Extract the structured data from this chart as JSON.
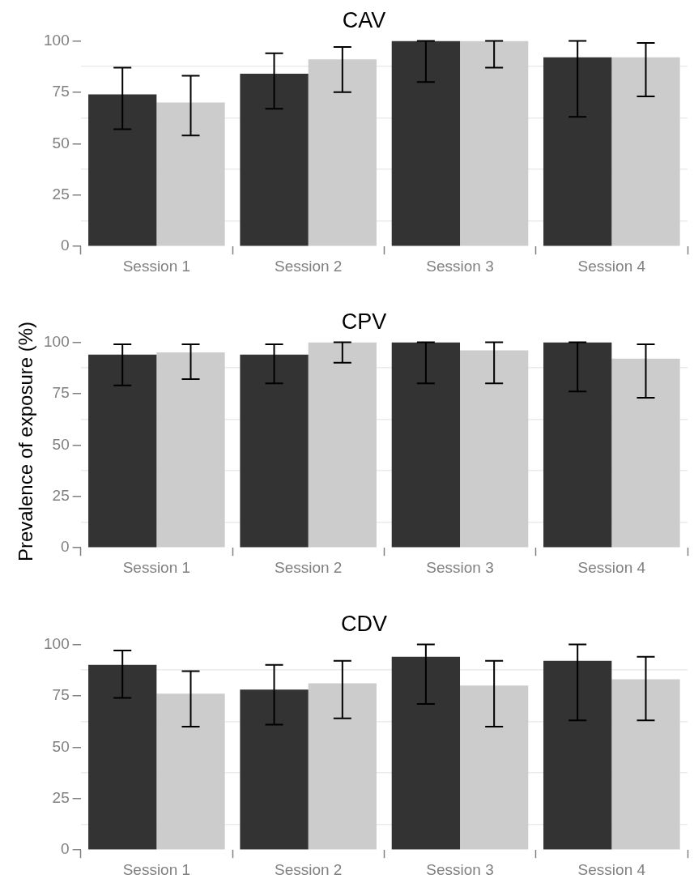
{
  "chart_data": [
    {
      "type": "bar",
      "title": "CAV",
      "categories": [
        "Session 1",
        "Session 2",
        "Session 3",
        "Session 4"
      ],
      "series": [
        {
          "color": "#333333",
          "values": [
            74,
            84,
            100,
            92
          ],
          "errors": [
            [
              57,
              87
            ],
            [
              67,
              94
            ],
            [
              80,
              100
            ],
            [
              63,
              100
            ]
          ]
        },
        {
          "color": "#cccccc",
          "values": [
            70,
            91,
            100,
            92
          ],
          "errors": [
            [
              54,
              83
            ],
            [
              75,
              97
            ],
            [
              87,
              100
            ],
            [
              73,
              99
            ]
          ]
        }
      ],
      "ylim": [
        0,
        100
      ],
      "yticks": [
        0,
        {
          "value": 12.5,
          "label": null
        },
        25,
        {
          "value": 37.5,
          "label": null
        },
        50,
        {
          "value": 62.5,
          "label": null
        },
        75,
        {
          "value": 87.5,
          "label": null
        },
        100
      ],
      "grid": "y",
      "legend": false
    },
    {
      "type": "bar",
      "title": "CPV",
      "ylabel": "Prevalence of exposure (%)",
      "categories": [
        "Session 1",
        "Session 2",
        "Session 3",
        "Session 4"
      ],
      "series": [
        {
          "color": "#333333",
          "values": [
            94,
            94,
            100,
            100
          ],
          "errors": [
            [
              79,
              99
            ],
            [
              80,
              99
            ],
            [
              80,
              100
            ],
            [
              76,
              100
            ]
          ]
        },
        {
          "color": "#cccccc",
          "values": [
            95,
            100,
            96,
            92
          ],
          "errors": [
            [
              82,
              99
            ],
            [
              90,
              100
            ],
            [
              80,
              100
            ],
            [
              73,
              99
            ]
          ]
        }
      ],
      "ylim": [
        0,
        100
      ],
      "yticks": [
        0,
        {
          "value": 12.5,
          "label": null
        },
        25,
        {
          "value": 37.5,
          "label": null
        },
        50,
        {
          "value": 62.5,
          "label": null
        },
        75,
        {
          "value": 87.5,
          "label": null
        },
        100
      ],
      "grid": "y",
      "legend": false
    },
    {
      "type": "bar",
      "title": "CDV",
      "categories": [
        "Session 1",
        "Session 2",
        "Session 3",
        "Session 4"
      ],
      "series": [
        {
          "color": "#333333",
          "values": [
            90,
            78,
            94,
            92
          ],
          "errors": [
            [
              74,
              97
            ],
            [
              61,
              90
            ],
            [
              71,
              100
            ],
            [
              63,
              100
            ]
          ]
        },
        {
          "color": "#cccccc",
          "values": [
            76,
            81,
            80,
            83
          ],
          "errors": [
            [
              60,
              87
            ],
            [
              64,
              92
            ],
            [
              60,
              92
            ],
            [
              63,
              94
            ]
          ]
        }
      ],
      "ylim": [
        0,
        100
      ],
      "yticks": [
        0,
        {
          "value": 12.5,
          "label": null
        },
        25,
        {
          "value": 37.5,
          "label": null
        },
        50,
        {
          "value": 62.5,
          "label": null
        },
        75,
        {
          "value": 87.5,
          "label": null
        },
        100
      ],
      "grid": "y",
      "legend": false
    }
  ]
}
